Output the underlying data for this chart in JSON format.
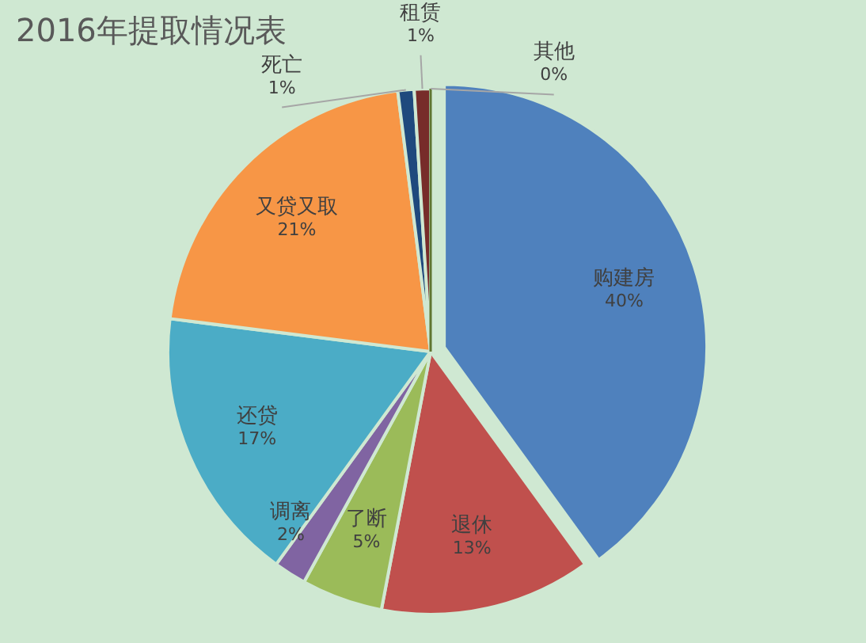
{
  "chart_data": {
    "type": "pie",
    "title": "2016年提取情况表",
    "categories": [
      "购建房",
      "退休",
      "了断",
      "调离",
      "还贷",
      "又贷又取",
      "死亡",
      "租赁",
      "其他"
    ],
    "values": [
      40,
      13,
      5,
      2,
      17,
      21,
      1,
      1,
      0
    ],
    "colors": [
      "#4f81bd",
      "#c0504d",
      "#9bbb59",
      "#8064a2",
      "#4bacc6",
      "#f79646",
      "#1f497d",
      "#772c2a",
      "#5f7530"
    ],
    "value_labels": [
      "40%",
      "13%",
      "5%",
      "2%",
      "17%",
      "21%",
      "1%",
      "1%",
      "0%"
    ]
  }
}
